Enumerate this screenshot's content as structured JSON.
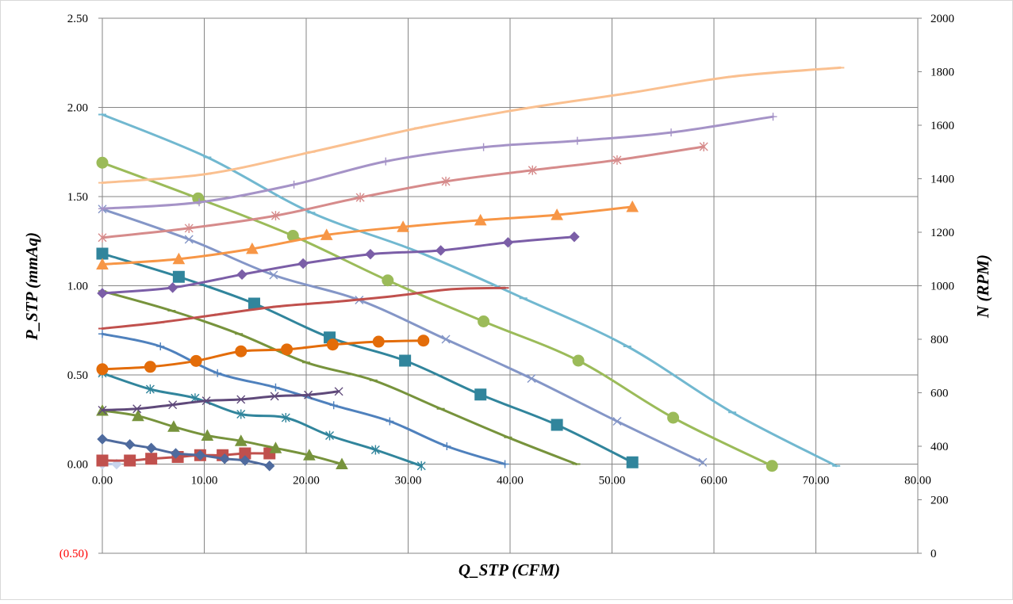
{
  "chart_data": {
    "type": "line",
    "title": "",
    "xlabel": "Q_STP (CFM)",
    "ylabel": "P_STP (mmAq)",
    "y2label": "N (RPM)",
    "xlim": [
      0,
      80
    ],
    "ylim": [
      -0.5,
      2.5
    ],
    "y2lim": [
      0,
      2000
    ],
    "xticks": [
      0,
      10,
      20,
      30,
      40,
      50,
      60,
      70,
      80
    ],
    "xtick_labels": [
      "0.00",
      "10.00",
      "20.00",
      "30.00",
      "40.00",
      "50.00",
      "60.00",
      "70.00",
      "80.00"
    ],
    "yticks": [
      2.5,
      2.0,
      1.5,
      1.0,
      0.5,
      0.0,
      -0.5
    ],
    "ytick_labels": [
      "2.50",
      "2.00",
      "1.50",
      "1.00",
      "0.50",
      "0.00",
      "(0.50)"
    ],
    "ytick_colors": [
      "#000000",
      "#000000",
      "#000000",
      "#000000",
      "#000000",
      "#000000",
      "#ff0000"
    ],
    "y2ticks": [
      2000,
      1800,
      1600,
      1400,
      1200,
      1000,
      800,
      600,
      400,
      200,
      0
    ],
    "y2tick_labels": [
      "2000",
      "1800",
      "1600",
      "1400",
      "1200",
      "1000",
      "800",
      "600",
      "400",
      "200",
      "0"
    ],
    "grid": true,
    "legend": "none",
    "colors": {
      "grid": "#868686",
      "axis": "#868686",
      "frame": "#d9d9d9"
    },
    "series": [
      {
        "axis": "left",
        "color": "#4f81bd",
        "marker": "lightdiamond",
        "x": [
          0,
          1.4
        ],
        "y": [
          0.0,
          0.0
        ]
      },
      {
        "axis": "left",
        "color": "#c0504d",
        "marker": "square",
        "x": [
          0,
          2.7,
          4.8,
          7.4,
          9.6,
          11.8,
          14.0,
          16.4
        ],
        "y": [
          0.02,
          0.02,
          0.03,
          0.04,
          0.05,
          0.05,
          0.06,
          0.06
        ]
      },
      {
        "axis": "left",
        "color": "#4f6b9e",
        "marker": "diamond",
        "x": [
          0,
          2.7,
          4.8,
          7.2,
          9.6,
          12.0,
          14.0,
          16.4
        ],
        "y": [
          0.14,
          0.11,
          0.09,
          0.06,
          0.05,
          0.03,
          0.02,
          -0.01
        ]
      },
      {
        "axis": "left",
        "color": "#77933c",
        "marker": "triangle",
        "x": [
          0,
          3.5,
          7.0,
          10.3,
          13.6,
          17.0,
          20.3,
          23.5
        ],
        "y": [
          0.3,
          0.27,
          0.21,
          0.16,
          0.13,
          0.09,
          0.05,
          0.0
        ]
      },
      {
        "axis": "left",
        "color": "#31859c",
        "marker": "star",
        "x": [
          0,
          4.7,
          9.1,
          13.6,
          18.0,
          22.3,
          26.8,
          31.3
        ],
        "y": [
          0.51,
          0.42,
          0.37,
          0.28,
          0.26,
          0.16,
          0.08,
          -0.01
        ]
      },
      {
        "axis": "left",
        "color": "#4f81bd",
        "marker": "plus",
        "x": [
          0,
          5.7,
          11.3,
          17.0,
          22.7,
          28.2,
          33.8,
          39.5
        ],
        "y": [
          0.73,
          0.66,
          0.51,
          0.43,
          0.33,
          0.24,
          0.1,
          0.0
        ]
      },
      {
        "axis": "left",
        "color": "#77933c",
        "marker": "dash",
        "x": [
          0,
          6.8,
          13.4,
          20.0,
          26.6,
          33.2,
          39.8,
          46.5
        ],
        "y": [
          0.97,
          0.86,
          0.73,
          0.57,
          0.47,
          0.31,
          0.15,
          0.0
        ]
      },
      {
        "axis": "left",
        "color": "#31859c",
        "marker": "square",
        "x": [
          0,
          7.5,
          14.9,
          22.3,
          29.7,
          37.1,
          44.6,
          52.0
        ],
        "y": [
          1.18,
          1.05,
          0.9,
          0.71,
          0.58,
          0.39,
          0.22,
          0.01
        ]
      },
      {
        "axis": "left",
        "color": "#8496c7",
        "marker": "x",
        "x": [
          0,
          8.5,
          16.8,
          25.2,
          33.7,
          42.1,
          50.5,
          58.9
        ],
        "y": [
          1.43,
          1.26,
          1.06,
          0.92,
          0.7,
          0.48,
          0.24,
          0.01
        ]
      },
      {
        "axis": "left",
        "color": "#9bbb59",
        "marker": "circle",
        "x": [
          0,
          9.4,
          18.7,
          28.0,
          37.4,
          46.7,
          56.0,
          65.7
        ],
        "y": [
          1.69,
          1.49,
          1.28,
          1.03,
          0.8,
          0.58,
          0.26,
          -0.01
        ]
      },
      {
        "axis": "left",
        "color": "#71b8d0",
        "marker": "dash",
        "x": [
          0,
          10.3,
          20.5,
          31.0,
          41.3,
          51.5,
          61.8,
          72.0
        ],
        "y": [
          1.96,
          1.72,
          1.41,
          1.19,
          0.93,
          0.66,
          0.29,
          -0.01
        ]
      },
      {
        "axis": "right",
        "color": "#5f497a",
        "marker": "x",
        "x": [
          0,
          3.4,
          6.9,
          10.2,
          13.6,
          16.9,
          20.2,
          23.2
        ],
        "y": [
          535,
          540,
          555,
          570,
          575,
          587,
          592,
          605
        ]
      },
      {
        "axis": "right",
        "color": "#e36c09",
        "marker": "circle",
        "x": [
          0,
          4.7,
          9.2,
          13.6,
          18.1,
          22.6,
          27.1,
          31.5
        ],
        "y": [
          688,
          697,
          719,
          755,
          762,
          780,
          791,
          795
        ]
      },
      {
        "axis": "right",
        "color": "#c0504d",
        "marker": "dash",
        "x": [
          0,
          5.7,
          11.4,
          17.1,
          22.8,
          28.3,
          34.2,
          39.5
        ],
        "y": [
          840,
          863,
          893,
          922,
          940,
          960,
          987,
          992
        ]
      },
      {
        "axis": "right",
        "color": "#7b5ea7",
        "marker": "diamond",
        "x": [
          0,
          6.9,
          13.7,
          19.7,
          26.3,
          33.2,
          39.8,
          46.3
        ],
        "y": [
          972,
          993,
          1042,
          1083,
          1118,
          1132,
          1162,
          1183
        ]
      },
      {
        "axis": "right",
        "color": "#f79646",
        "marker": "triangle",
        "x": [
          0,
          7.5,
          14.7,
          22.0,
          29.5,
          37.1,
          44.6,
          52.0
        ],
        "y": [
          1080,
          1100,
          1138,
          1190,
          1220,
          1245,
          1265,
          1295
        ]
      },
      {
        "axis": "right",
        "color": "#d68b8b",
        "marker": "star",
        "x": [
          0,
          8.5,
          17.0,
          25.3,
          33.7,
          42.2,
          50.5,
          59.0
        ],
        "y": [
          1180,
          1215,
          1262,
          1330,
          1390,
          1432,
          1470,
          1520
        ]
      },
      {
        "axis": "right",
        "color": "#a593c7",
        "marker": "plus",
        "x": [
          0,
          9.5,
          18.8,
          27.8,
          37.4,
          46.6,
          55.8,
          65.8
        ],
        "y": [
          1288,
          1312,
          1378,
          1465,
          1518,
          1542,
          1573,
          1632
        ]
      },
      {
        "axis": "right",
        "color": "#fac090",
        "marker": "dash",
        "x": [
          0,
          10.3,
          20.5,
          31.0,
          41.3,
          51.6,
          61.8,
          72.4
        ],
        "y": [
          1385,
          1418,
          1500,
          1590,
          1662,
          1720,
          1782,
          1815
        ]
      }
    ]
  }
}
